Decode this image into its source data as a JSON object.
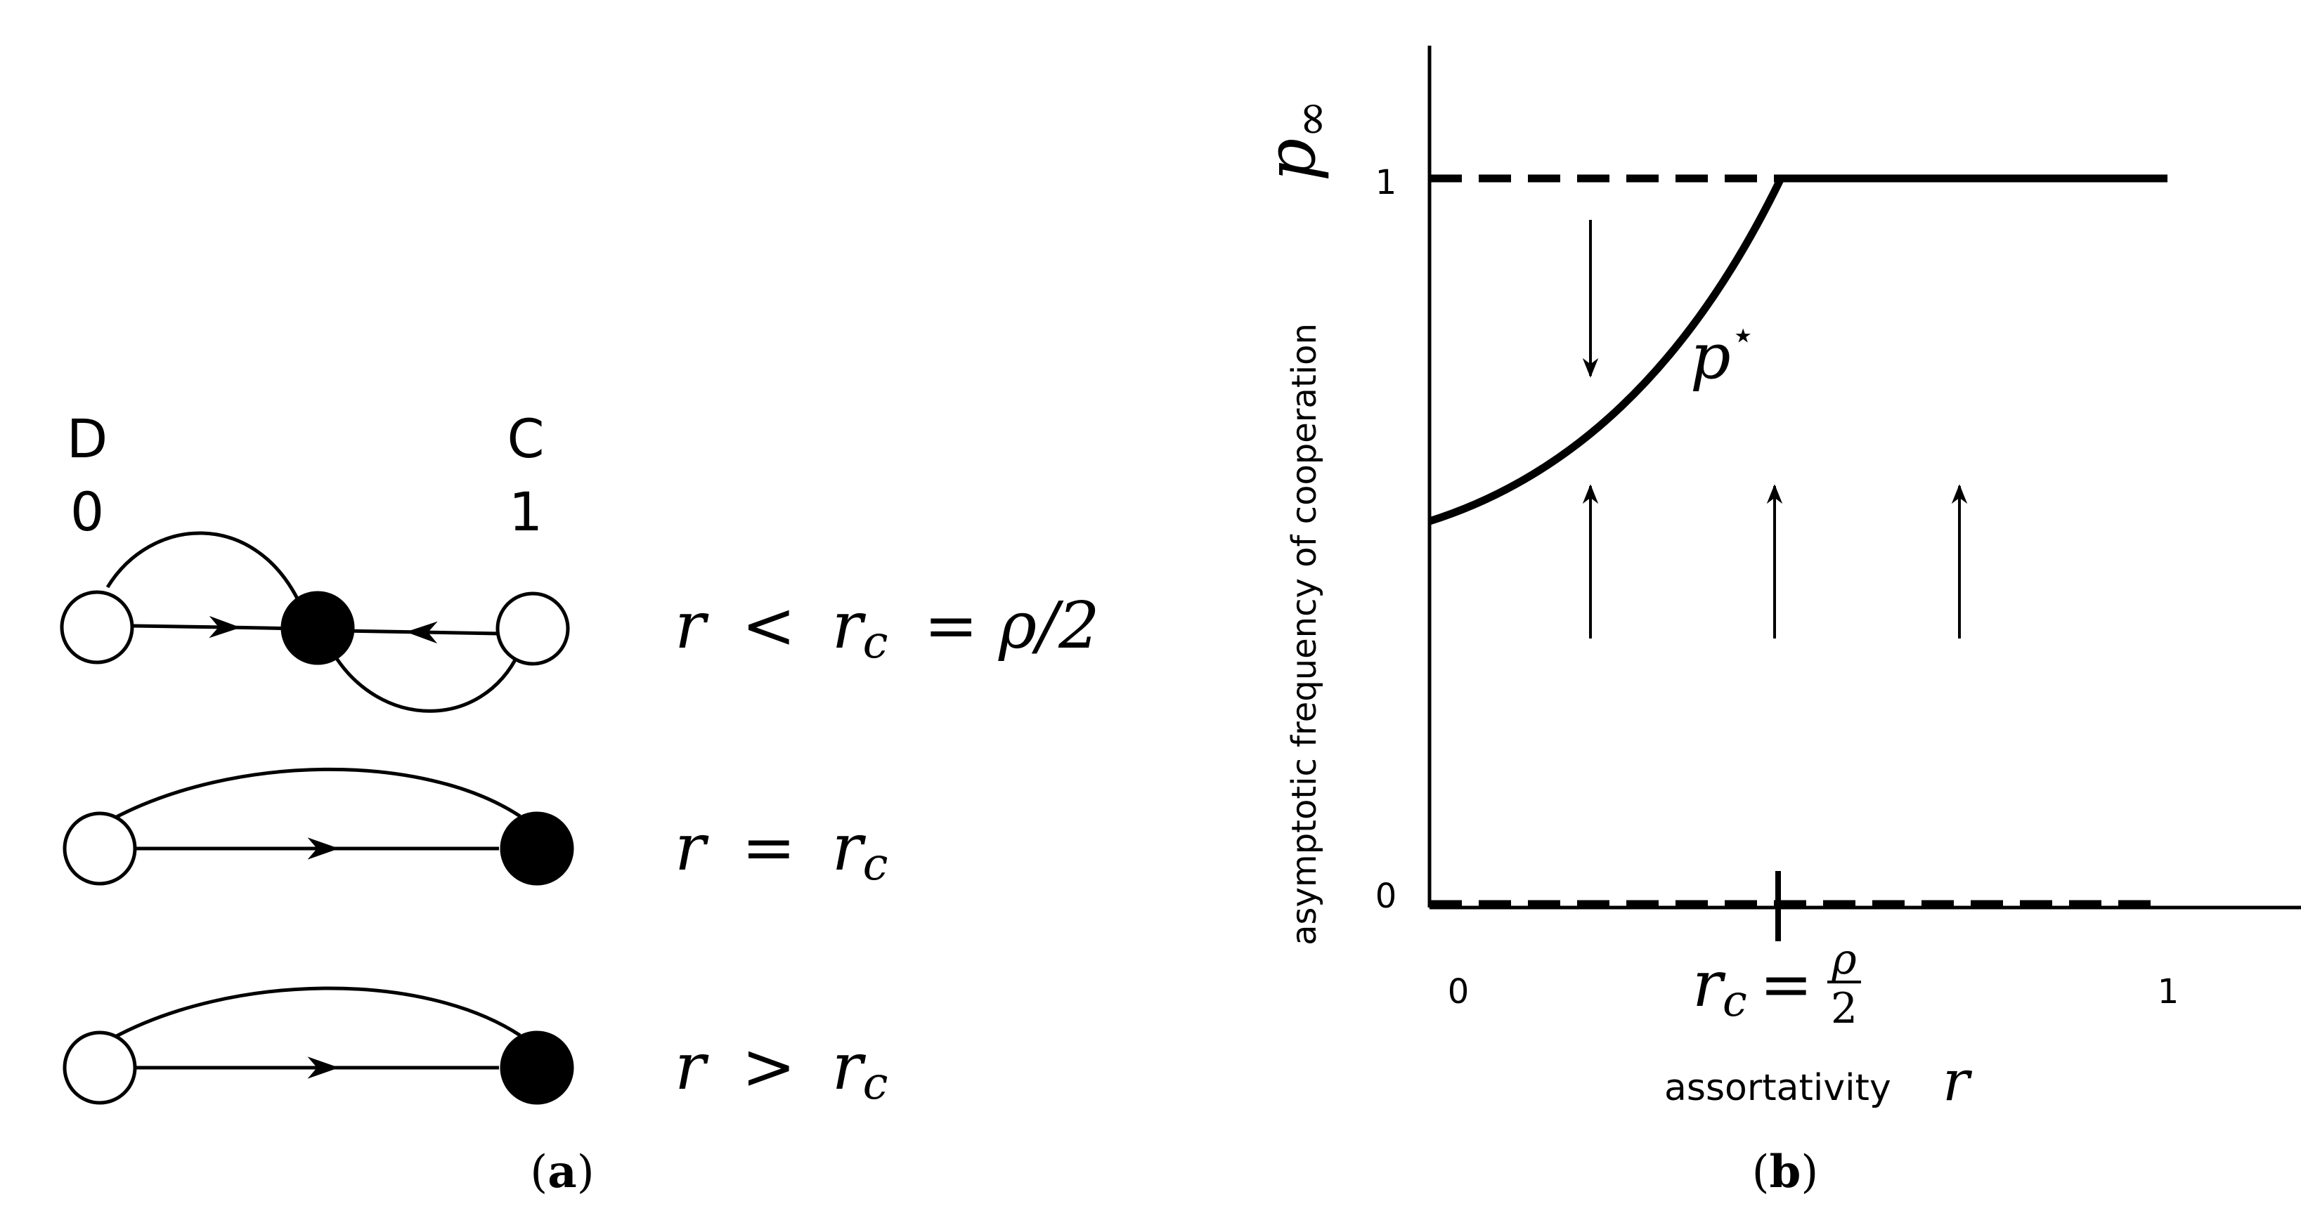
{
  "panel_a": {
    "caption": "a",
    "labels": {
      "d_letter": "D",
      "d_value": "0",
      "c_letter": "C",
      "c_value": "1"
    },
    "rows": [
      {
        "condition_lhs": "r",
        "condition_rel": "<",
        "condition_rhs": "r",
        "condition_sub": "c",
        "condition_tail": "= ρ/2"
      },
      {
        "condition_lhs": "r",
        "condition_rel": "=",
        "condition_rhs": "r",
        "condition_sub": "c",
        "condition_tail": ""
      },
      {
        "condition_lhs": "r",
        "condition_rel": ">",
        "condition_rhs": "r",
        "condition_sub": "c",
        "condition_tail": ""
      }
    ]
  },
  "panel_b": {
    "caption": "b",
    "y_axis_symbol": "p",
    "y_axis_symbol_sub": "∞",
    "y_axis_label": "asymptotic frequency of cooperation",
    "x_axis_label": "assortativity",
    "x_axis_symbol": "r",
    "y_ticks": [
      "1",
      "0"
    ],
    "x_ticks": {
      "left": "0",
      "right": "1",
      "critical_lhs": "r",
      "critical_sub": "c",
      "critical_eq": "=",
      "critical_num": "ρ",
      "critical_den": "2"
    },
    "curve_label": "p",
    "curve_label_sup": "⋆"
  }
}
